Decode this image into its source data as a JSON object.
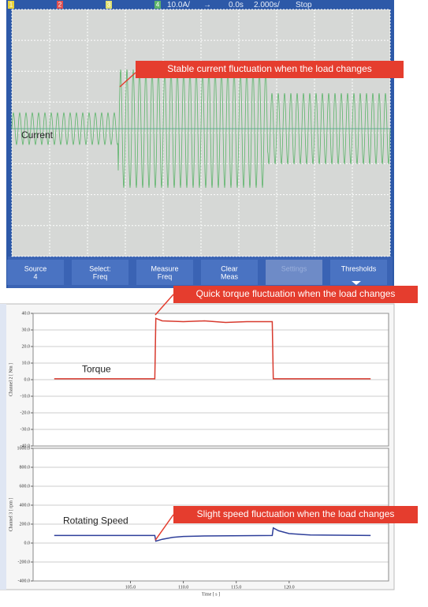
{
  "oscilloscope": {
    "status": {
      "channels": [
        "1",
        "2",
        "3",
        "4"
      ],
      "scale": "10.0A/",
      "arrow": "→",
      "delay": "0.0s",
      "timebase": "2.000s/",
      "state": "Stop"
    },
    "annotation": "Stable current fluctuation when the load changes",
    "trace_label": "Current",
    "menu": [
      [
        "Source",
        "4"
      ],
      [
        "Select:",
        "Freq"
      ],
      [
        "Measure",
        "Freq"
      ],
      [
        "Clear",
        "Meas"
      ],
      [
        "Settings",
        ""
      ],
      [
        "Thresholds",
        ""
      ]
    ]
  },
  "chart_data": [
    {
      "type": "line",
      "ylabel": "Channel 2 [ Nm ]",
      "annotation": "Quick torque fluctuation when the load changes",
      "series": [
        {
          "name": "Torque",
          "color": "#d83a2e",
          "x": [
            97.8,
            107.3,
            107.4,
            108,
            110,
            112,
            114,
            116,
            118.4,
            118.5,
            127.7
          ],
          "values": [
            0.5,
            0.5,
            37,
            35.5,
            35,
            35.5,
            34.5,
            35,
            35,
            0.5,
            0.5
          ]
        }
      ],
      "xlim": [
        95.8,
        129.4
      ],
      "ylim": [
        -40,
        40
      ],
      "yticks": [
        {
          "value": 40,
          "label": "40.0"
        },
        {
          "value": 30,
          "label": "30.0"
        },
        {
          "value": 20,
          "label": "20.0"
        },
        {
          "value": 10,
          "label": "10.0"
        },
        {
          "value": 0,
          "label": "0.0"
        },
        {
          "value": -10,
          "label": "-10.0"
        },
        {
          "value": -20,
          "label": "-20.0"
        },
        {
          "value": -30,
          "label": "-30.0"
        },
        {
          "value": -40,
          "label": "-40.0"
        }
      ],
      "grid": true
    },
    {
      "type": "line",
      "ylabel": "Channel 3 [ rpm ]",
      "xlabel": "Time [ s ]",
      "annotation": "Slight speed fluctuation when the load changes",
      "series": [
        {
          "name": "Rotating Speed",
          "color": "#2e3f9a",
          "x": [
            97.8,
            107.3,
            107.4,
            108,
            109,
            110,
            112,
            118.4,
            118.5,
            119,
            120,
            122,
            127.7
          ],
          "values": [
            80,
            80,
            20,
            40,
            60,
            70,
            75,
            80,
            160,
            130,
            100,
            85,
            80
          ]
        }
      ],
      "xlim": [
        95.8,
        129.4
      ],
      "ylim": [
        -400,
        1000
      ],
      "xticks": [
        {
          "value": 105,
          "label": "105.0"
        },
        {
          "value": 110,
          "label": "110.0"
        },
        {
          "value": 115,
          "label": "115.0"
        },
        {
          "value": 120,
          "label": "120.0"
        }
      ],
      "yticks": [
        {
          "value": 1000,
          "label": "1000.0"
        },
        {
          "value": 800,
          "label": "800.0"
        },
        {
          "value": 600,
          "label": "600.0"
        },
        {
          "value": 400,
          "label": "400.0"
        },
        {
          "value": 200,
          "label": "200.0"
        },
        {
          "value": 0,
          "label": "0.0"
        },
        {
          "value": -200,
          "label": "-200.0"
        },
        {
          "value": -400,
          "label": "-400.0"
        }
      ],
      "grid": true
    }
  ]
}
